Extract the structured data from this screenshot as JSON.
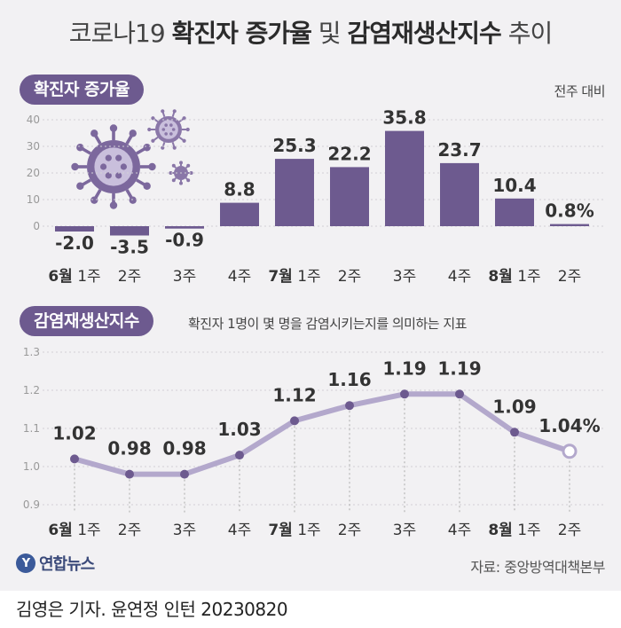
{
  "title": {
    "part1": "코로나19 ",
    "part2": "확진자 증가율",
    "part3": " 및 ",
    "part4": "감염재생산지수",
    "part5": " 추이"
  },
  "chart1": {
    "pill": "확진자 증가율",
    "note": "전주 대비"
  },
  "chart2": {
    "pill": "감염재생산지수",
    "note": "확진자 1명이 몇 명을 감염시키는지를 의미하는 지표"
  },
  "source": "자료: 중앙방역대책본부",
  "logo": {
    "mark": "Y",
    "text": "연합뉴스"
  },
  "credit": "김영은 기자. 윤연정 인턴  20230820",
  "colors": {
    "bar": "#6d5a8f",
    "line": "#b3a8cc",
    "accent": "#6d5a8f"
  },
  "chart_data": [
    {
      "type": "bar",
      "title": "확진자 증가율",
      "categories": [
        {
          "bold": "6월",
          "rest": " 1주"
        },
        {
          "bold": "",
          "rest": "2주"
        },
        {
          "bold": "",
          "rest": "3주"
        },
        {
          "bold": "",
          "rest": "4주"
        },
        {
          "bold": "7월",
          "rest": " 1주"
        },
        {
          "bold": "",
          "rest": "2주"
        },
        {
          "bold": "",
          "rest": "3주"
        },
        {
          "bold": "",
          "rest": "4주"
        },
        {
          "bold": "8월",
          "rest": " 1주"
        },
        {
          "bold": "",
          "rest": "2주"
        }
      ],
      "values": [
        -2.0,
        -3.5,
        -0.9,
        8.8,
        25.3,
        22.2,
        35.8,
        23.7,
        10.4,
        0.8
      ],
      "labels": [
        "-2.0",
        "-3.5",
        "-0.9",
        "8.8",
        "25.3",
        "22.2",
        "35.8",
        "23.7",
        "10.4",
        "0.8%"
      ],
      "ylim": [
        0,
        40
      ],
      "yticks": [
        "0",
        "10",
        "20",
        "30",
        "40"
      ],
      "grid": true
    },
    {
      "type": "line",
      "title": "감염재생산지수",
      "categories": [
        {
          "bold": "6월",
          "rest": " 1주"
        },
        {
          "bold": "",
          "rest": "2주"
        },
        {
          "bold": "",
          "rest": "3주"
        },
        {
          "bold": "",
          "rest": "4주"
        },
        {
          "bold": "7월",
          "rest": " 1주"
        },
        {
          "bold": "",
          "rest": "2주"
        },
        {
          "bold": "",
          "rest": "3주"
        },
        {
          "bold": "",
          "rest": "4주"
        },
        {
          "bold": "8월",
          "rest": " 1주"
        },
        {
          "bold": "",
          "rest": "2주"
        }
      ],
      "values": [
        1.02,
        0.98,
        0.98,
        1.03,
        1.12,
        1.16,
        1.19,
        1.19,
        1.09,
        1.04
      ],
      "labels": [
        "1.02",
        "0.98",
        "0.98",
        "1.03",
        "1.12",
        "1.16",
        "1.19",
        "1.19",
        "1.09",
        "1.04%"
      ],
      "ylim": [
        0.9,
        1.3
      ],
      "yticks": [
        "0.9",
        "1.0",
        "1.1",
        "1.2",
        "1.3"
      ],
      "grid": true
    }
  ]
}
